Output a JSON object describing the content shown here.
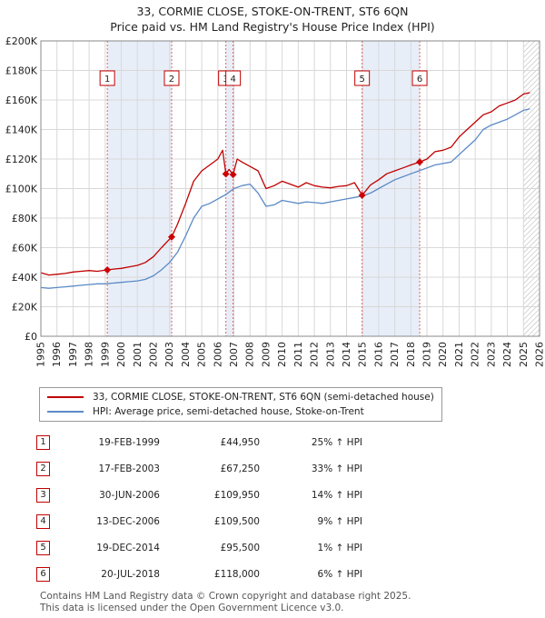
{
  "title_line1": "33, CORMIE CLOSE, STOKE-ON-TRENT, ST6 6QN",
  "title_line2": "Price paid vs. HM Land Registry's House Price Index (HPI)",
  "legend": {
    "property": "33, CORMIE CLOSE, STOKE-ON-TRENT, ST6 6QN (semi-detached house)",
    "hpi": "HPI: Average price, semi-detached house, Stoke-on-Trent"
  },
  "colors": {
    "property": "#c00000",
    "hpi": "#5b8ac6",
    "shade": "#e8eef8",
    "grid": "#d8d8d8",
    "marker": "#cc0000"
  },
  "sales": [
    {
      "num": "1",
      "date": "19-FEB-1999",
      "price": "£44,950",
      "hpi": "25% ↑ HPI"
    },
    {
      "num": "2",
      "date": "17-FEB-2003",
      "price": "£67,250",
      "hpi": "33% ↑ HPI"
    },
    {
      "num": "3",
      "date": "30-JUN-2006",
      "price": "£109,950",
      "hpi": "14% ↑ HPI"
    },
    {
      "num": "4",
      "date": "13-DEC-2006",
      "price": "£109,500",
      "hpi": "9% ↑ HPI"
    },
    {
      "num": "5",
      "date": "19-DEC-2014",
      "price": "£95,500",
      "hpi": "1% ↑ HPI"
    },
    {
      "num": "6",
      "date": "20-JUL-2018",
      "price": "£118,000",
      "hpi": "6% ↑ HPI"
    }
  ],
  "footer_line1": "Contains HM Land Registry data © Crown copyright and database right 2025.",
  "footer_line2": "This data is licensed under the Open Government Licence v3.0.",
  "chart_data": {
    "type": "line",
    "title": "33, CORMIE CLOSE, STOKE-ON-TRENT, ST6 6QN",
    "subtitle": "Price paid vs. HM Land Registry's House Price Index (HPI)",
    "xlabel": "",
    "ylabel": "",
    "xlim": [
      1995,
      2026
    ],
    "ylim": [
      0,
      200000
    ],
    "x_ticks": [
      1995,
      1996,
      1997,
      1998,
      1999,
      2000,
      2001,
      2002,
      2003,
      2004,
      2005,
      2006,
      2007,
      2008,
      2009,
      2010,
      2011,
      2012,
      2013,
      2014,
      2015,
      2016,
      2017,
      2018,
      2019,
      2020,
      2021,
      2022,
      2023,
      2024,
      2025,
      2026
    ],
    "y_ticks": [
      0,
      20000,
      40000,
      60000,
      80000,
      100000,
      120000,
      140000,
      160000,
      180000,
      200000
    ],
    "y_tick_labels": [
      "£0",
      "£20K",
      "£40K",
      "£60K",
      "£80K",
      "£100K",
      "£120K",
      "£140K",
      "£160K",
      "£180K",
      "£200K"
    ],
    "grid": true,
    "shaded_ranges": [
      [
        1999.13,
        2003.13
      ],
      [
        2006.5,
        2006.95
      ],
      [
        2014.97,
        2018.55
      ]
    ],
    "hatched_from": 2025.0,
    "series": [
      {
        "name": "33, CORMIE CLOSE, STOKE-ON-TRENT, ST6 6QN (semi-detached house)",
        "x": [
          1995.0,
          1995.5,
          1996.0,
          1996.5,
          1997.0,
          1997.5,
          1998.0,
          1998.5,
          1999.13,
          1999.5,
          2000.0,
          2000.5,
          2001.0,
          2001.5,
          2002.0,
          2002.5,
          2003.13,
          2003.5,
          2004.0,
          2004.5,
          2005.0,
          2005.5,
          2006.0,
          2006.3,
          2006.5,
          2006.7,
          2006.95,
          2007.2,
          2007.5,
          2008.0,
          2008.5,
          2009.0,
          2009.5,
          2010.0,
          2010.5,
          2011.0,
          2011.5,
          2012.0,
          2012.5,
          2013.0,
          2013.5,
          2014.0,
          2014.5,
          2014.97,
          2015.5,
          2016.0,
          2016.5,
          2017.0,
          2017.5,
          2018.0,
          2018.55,
          2019.0,
          2019.5,
          2020.0,
          2020.5,
          2021.0,
          2021.5,
          2022.0,
          2022.5,
          2023.0,
          2023.5,
          2024.0,
          2024.5,
          2025.0,
          2025.4
        ],
        "y": [
          43000,
          41500,
          42000,
          42500,
          43500,
          44000,
          44500,
          44000,
          44950,
          45500,
          46000,
          47000,
          48000,
          50000,
          54000,
          60000,
          67250,
          76000,
          90000,
          105000,
          112000,
          116000,
          120000,
          126000,
          109950,
          113000,
          109500,
          120000,
          118000,
          115000,
          112000,
          100000,
          102000,
          105000,
          103000,
          101000,
          104000,
          102000,
          101000,
          100500,
          101500,
          102000,
          104000,
          95500,
          102500,
          106000,
          110000,
          112000,
          114000,
          116000,
          118000,
          120000,
          125000,
          126000,
          128000,
          135000,
          140000,
          145000,
          150000,
          152000,
          156000,
          158000,
          160000,
          164000,
          165000
        ]
      },
      {
        "name": "HPI: Average price, semi-detached house, Stoke-on-Trent",
        "x": [
          1995.0,
          1995.5,
          1996.0,
          1996.5,
          1997.0,
          1997.5,
          1998.0,
          1998.5,
          1999.0,
          1999.5,
          2000.0,
          2000.5,
          2001.0,
          2001.5,
          2002.0,
          2002.5,
          2003.0,
          2003.5,
          2004.0,
          2004.5,
          2005.0,
          2005.5,
          2006.0,
          2006.5,
          2007.0,
          2007.5,
          2008.0,
          2008.5,
          2009.0,
          2009.5,
          2010.0,
          2010.5,
          2011.0,
          2011.5,
          2012.0,
          2012.5,
          2013.0,
          2013.5,
          2014.0,
          2014.5,
          2015.0,
          2015.5,
          2016.0,
          2016.5,
          2017.0,
          2017.5,
          2018.0,
          2018.5,
          2019.0,
          2019.5,
          2020.0,
          2020.5,
          2021.0,
          2021.5,
          2022.0,
          2022.5,
          2023.0,
          2023.5,
          2024.0,
          2024.5,
          2025.0,
          2025.4
        ],
        "y": [
          33000,
          32500,
          33000,
          33500,
          34000,
          34500,
          35000,
          35500,
          35500,
          36000,
          36500,
          37000,
          37500,
          38500,
          41000,
          45000,
          50000,
          57000,
          68000,
          80000,
          88000,
          90000,
          93000,
          96000,
          100000,
          102000,
          103000,
          97000,
          88000,
          89000,
          92000,
          91000,
          90000,
          91000,
          90500,
          90000,
          91000,
          92000,
          93000,
          94000,
          95000,
          97000,
          100000,
          103000,
          106000,
          108000,
          110000,
          112000,
          114000,
          116000,
          117000,
          118000,
          123000,
          128000,
          133000,
          140000,
          143000,
          145000,
          147000,
          150000,
          153000,
          154000
        ]
      }
    ],
    "sale_points": [
      {
        "label": "1",
        "x": 1999.13,
        "y": 44950
      },
      {
        "label": "2",
        "x": 2003.13,
        "y": 67250
      },
      {
        "label": "3",
        "x": 2006.5,
        "y": 109950
      },
      {
        "label": "4",
        "x": 2006.95,
        "y": 109500
      },
      {
        "label": "5",
        "x": 2014.97,
        "y": 95500
      },
      {
        "label": "6",
        "x": 2018.55,
        "y": 118000
      }
    ]
  }
}
